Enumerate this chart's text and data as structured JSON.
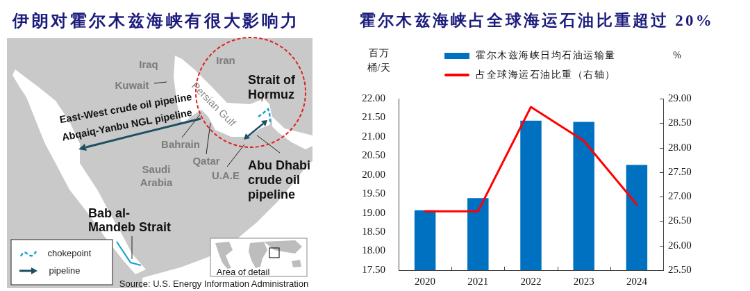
{
  "chart_data": [
    {
      "type": "other",
      "title": "伊朗对霍尔木兹海峡有很大影响力",
      "annotations": [
        "Iraq",
        "Iran",
        "Kuwait",
        "Persian Gulf",
        "Strait of Hormuz",
        "East-West crude oil pipeline",
        "Abqaiq-Yanbu NGL pipeline",
        "Bahrain",
        "Qatar",
        "Saudi Arabia",
        "U.A.E",
        "Abu Dhabi crude oil pipeline",
        "Bab al-Mandeb Strait",
        "chokepoint",
        "pipeline",
        "Area of detail",
        "Source: U.S. Energy Information Administration"
      ]
    },
    {
      "type": "bar",
      "title": "霍尔木兹海峡占全球海运石油比重超过 20%",
      "categories": [
        "2020",
        "2021",
        "2022",
        "2023",
        "2024"
      ],
      "series": [
        {
          "name": "霍尔木兹海峡日均石油运输量",
          "color": "#0070c0",
          "values": [
            19.07,
            19.39,
            21.42,
            21.39,
            20.26
          ]
        },
        {
          "name": "占全球海运石油比重（右轴）",
          "type": "line",
          "axis": "y2",
          "color": "#ff0000",
          "values": [
            26.7,
            26.7,
            28.83,
            28.14,
            26.84
          ]
        }
      ],
      "ylabel": "百万桶/天",
      "y2label": "%",
      "ylim": [
        17.5,
        22
      ],
      "yticks": [
        {
          "value": 17.5,
          "label": "17.50"
        },
        {
          "value": 18,
          "label": "18.00"
        },
        {
          "value": 18.5,
          "label": "18.50"
        },
        {
          "value": 19,
          "label": "19.00"
        },
        {
          "value": 19.5,
          "label": "19.50"
        },
        {
          "value": 20,
          "label": "20.00"
        },
        {
          "value": 20.5,
          "label": "20.50"
        },
        {
          "value": 21,
          "label": "21.00"
        },
        {
          "value": 21.5,
          "label": "21.50"
        },
        {
          "value": 22,
          "label": "22.00"
        }
      ],
      "y2lim": [
        25.5,
        29
      ],
      "y2ticks": [
        {
          "value": 25.5,
          "label": "25.50"
        },
        {
          "value": 26,
          "label": "26.00"
        },
        {
          "value": 26.5,
          "label": "26.50"
        },
        {
          "value": 27,
          "label": "27.00"
        },
        {
          "value": 27.5,
          "label": "27.50"
        },
        {
          "value": 28,
          "label": "28.00"
        },
        {
          "value": 28.5,
          "label": "28.50"
        },
        {
          "value": 29,
          "label": "29.00"
        }
      ],
      "legend": "top"
    }
  ]
}
